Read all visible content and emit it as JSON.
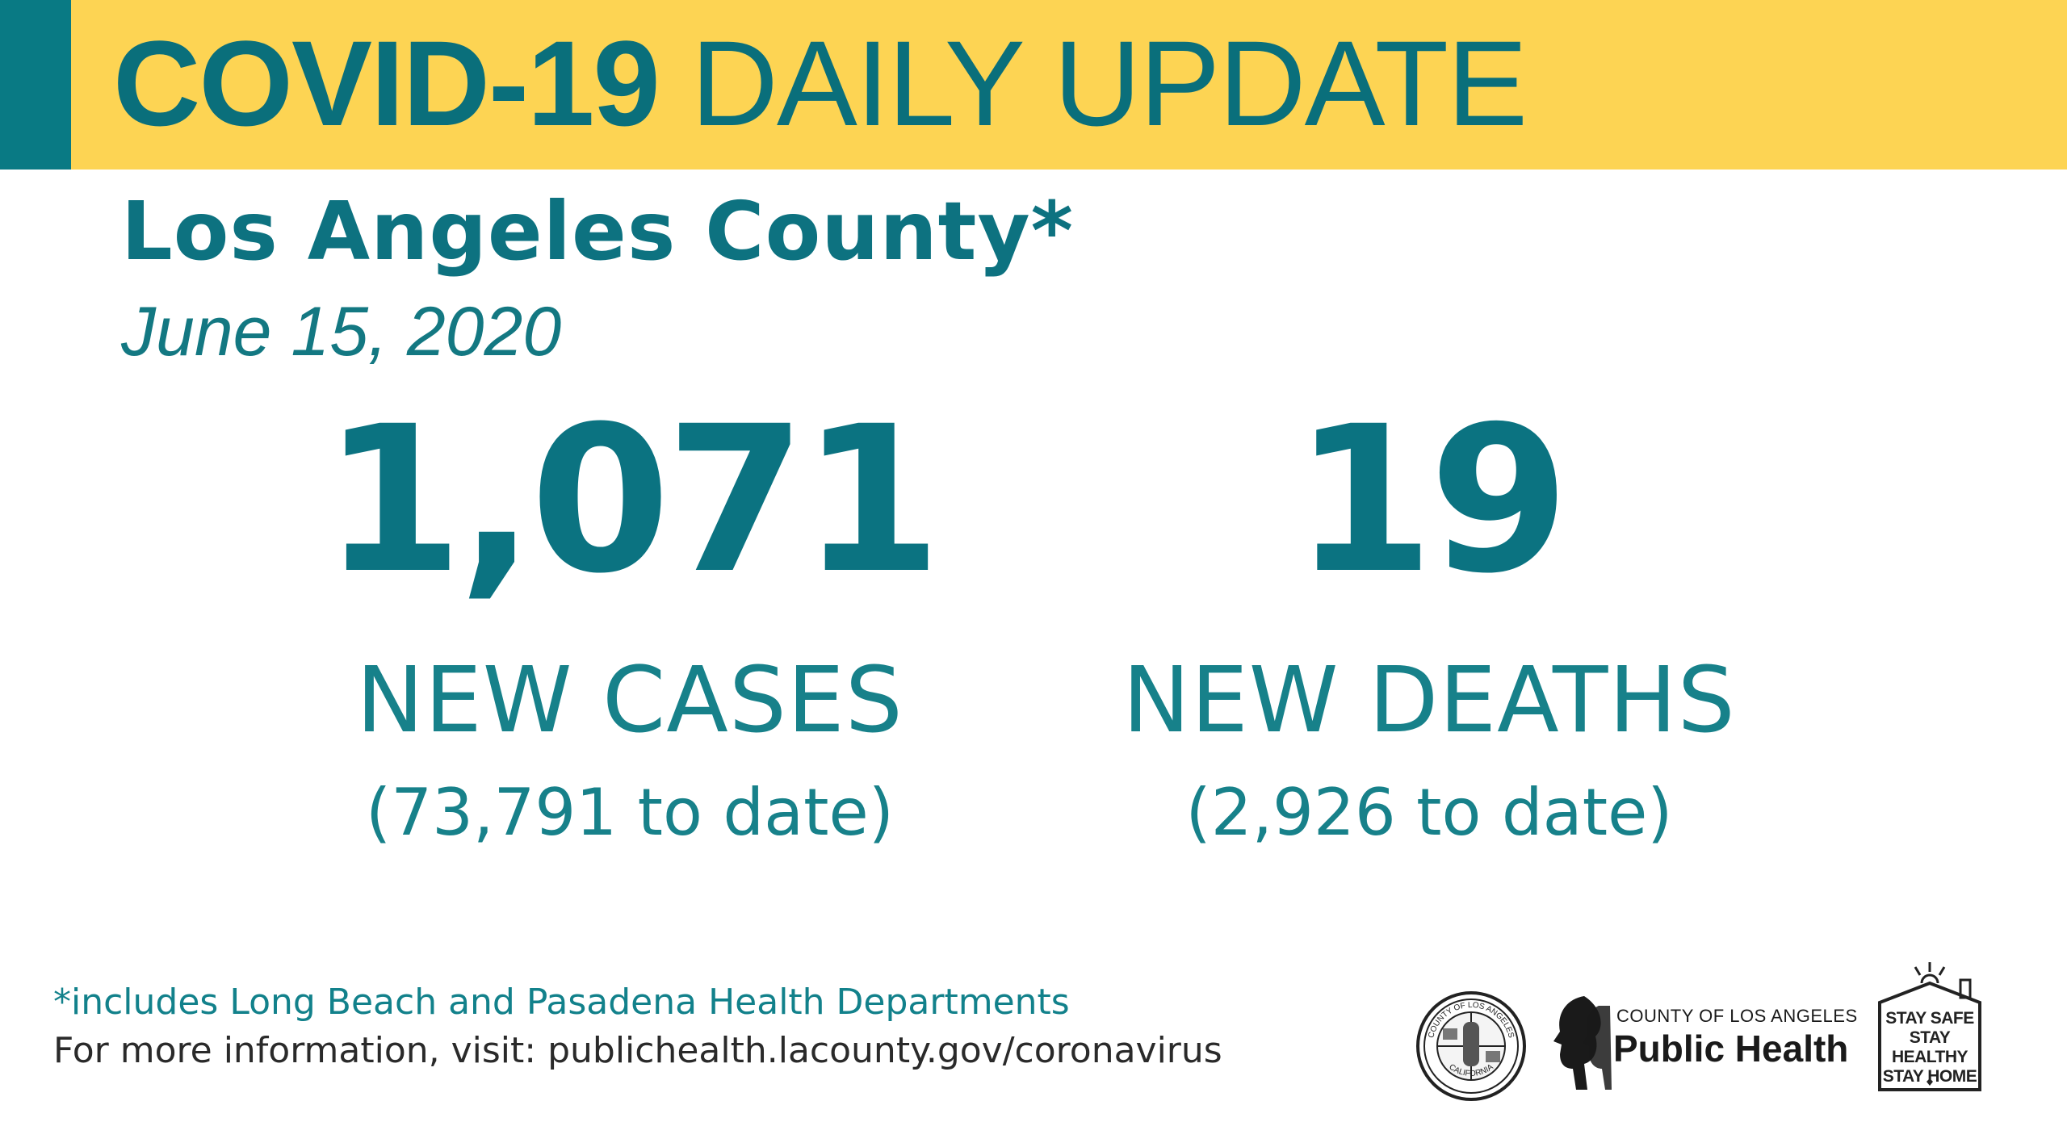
{
  "banner": {
    "title_bold": "COVID-19",
    "title_regular": " DAILY UPDATE",
    "background_color": "#fdd453",
    "accent_color": "#097a84"
  },
  "header": {
    "county": "Los Angeles County*",
    "date": "June 15, 2020"
  },
  "stats": {
    "cases": {
      "value": "1,071",
      "label": "NEW CASES",
      "to_date": "(73,791 to date)"
    },
    "deaths": {
      "value": "19",
      "label": "NEW DEATHS",
      "to_date": "(2,926 to date)"
    }
  },
  "footer": {
    "footnote": "*includes Long Beach and Pasadena Health Departments",
    "more_info": "For more information, visit: publichealth.lacounty.gov/coronavirus"
  },
  "logos": {
    "seal_top": "COUNTY OF LOS ANGELES",
    "seal_bottom": "CALIFORNIA",
    "public_health_small": "COUNTY OF LOS ANGELES",
    "public_health_big": "Public Health",
    "stay_safe": [
      "STAY SAFE",
      "STAY HEALTHY",
      "STAY HOME"
    ]
  }
}
